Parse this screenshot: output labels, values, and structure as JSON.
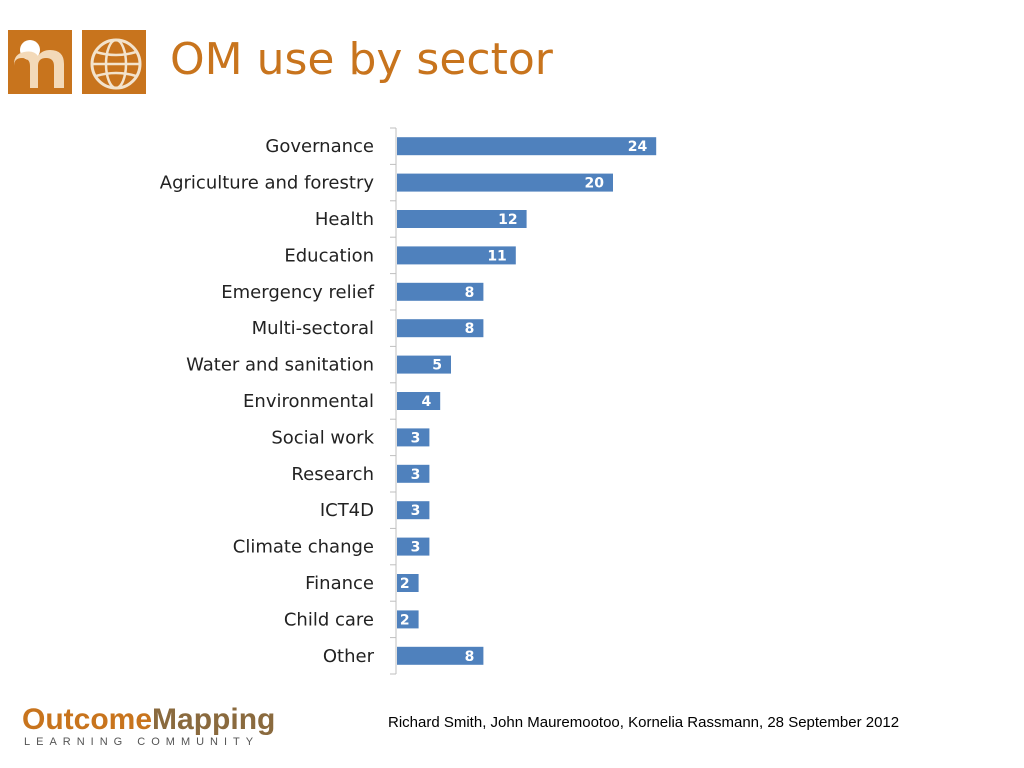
{
  "slide": {
    "title": "OM use by sector",
    "brand_part1": "Outcome",
    "brand_part2": "Mapping",
    "brand_sub": "LEARNING COMMUNITY",
    "credit": "Richard Smith, John Mauremootoo, Kornelia Rassmann, 28 September 2012"
  },
  "colors": {
    "bar": "#4f81bd",
    "title": "#c8741d",
    "logo": "#c8741d"
  },
  "icons": {
    "logo": "om-logo-icon",
    "globe": "globe-logo-icon"
  },
  "chart_data": {
    "type": "bar",
    "orientation": "horizontal",
    "categories": [
      "Governance",
      "Agriculture and forestry",
      "Health",
      "Education",
      "Emergency relief",
      "Multi-sectoral",
      "Water and sanitation",
      "Environmental",
      "Social work",
      "Research",
      "ICT4D",
      "Climate change",
      "Finance",
      "Child care",
      "Other"
    ],
    "values": [
      24,
      20,
      12,
      11,
      8,
      8,
      5,
      4,
      3,
      3,
      3,
      3,
      2,
      2,
      8
    ],
    "data_labels": true,
    "grid": false,
    "legend": "none"
  }
}
